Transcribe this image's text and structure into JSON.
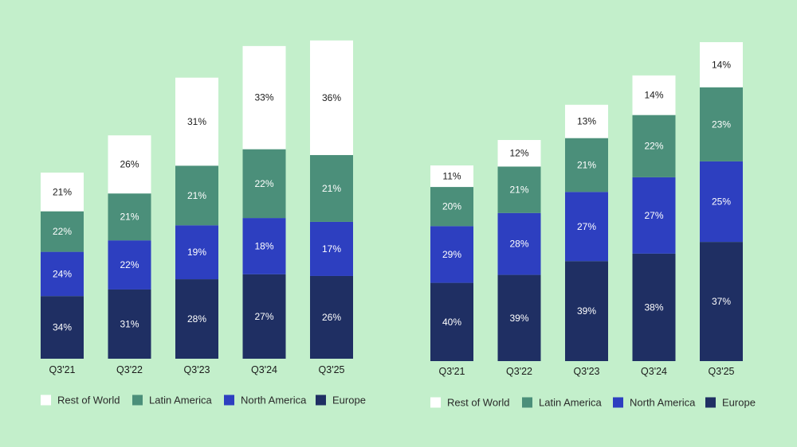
{
  "chart_data": [
    {
      "type": "bar",
      "stacked": true,
      "title": "",
      "xlabel": "",
      "ylabel": "",
      "categories": [
        "Q3'21",
        "Q3'22",
        "Q3'23",
        "Q3'24",
        "Q3'25"
      ],
      "total_index_estimated": [
        100,
        120,
        151,
        168,
        171
      ],
      "series": [
        {
          "name": "Europe",
          "color": "#1f2f63",
          "label_color": "#ffffff",
          "values": [
            34,
            31,
            28,
            27,
            26
          ]
        },
        {
          "name": "North America",
          "color": "#2d3fc0",
          "label_color": "#ffffff",
          "values": [
            24,
            22,
            19,
            18,
            17
          ]
        },
        {
          "name": "Latin America",
          "color": "#4b8f7a",
          "label_color": "#ffffff",
          "values": [
            22,
            21,
            21,
            22,
            21
          ]
        },
        {
          "name": "Rest of World",
          "color": "#ffffff",
          "label_color": "#1a1a1a",
          "values": [
            21,
            26,
            31,
            33,
            36
          ]
        }
      ],
      "value_suffix": "%",
      "legend": {
        "position": "bottom-left",
        "order": [
          "Rest of World",
          "Latin America",
          "North America",
          "Europe"
        ]
      },
      "grid": false
    },
    {
      "type": "bar",
      "stacked": true,
      "title": "",
      "xlabel": "",
      "ylabel": "",
      "categories": [
        "Q3'21",
        "Q3'22",
        "Q3'23",
        "Q3'24",
        "Q3'25"
      ],
      "total_index_estimated": [
        100,
        113,
        131,
        146,
        163
      ],
      "series": [
        {
          "name": "Europe",
          "color": "#1f2f63",
          "label_color": "#ffffff",
          "values": [
            40,
            39,
            39,
            38,
            37
          ]
        },
        {
          "name": "North America",
          "color": "#2d3fc0",
          "label_color": "#ffffff",
          "values": [
            29,
            28,
            27,
            27,
            25
          ]
        },
        {
          "name": "Latin America",
          "color": "#4b8f7a",
          "label_color": "#ffffff",
          "values": [
            20,
            21,
            21,
            22,
            23
          ]
        },
        {
          "name": "Rest of World",
          "color": "#ffffff",
          "label_color": "#1a1a1a",
          "values": [
            11,
            12,
            13,
            14,
            14
          ]
        }
      ],
      "value_suffix": "%",
      "legend": {
        "position": "bottom-left",
        "order": [
          "Rest of World",
          "Latin America",
          "North America",
          "Europe"
        ]
      },
      "grid": false
    }
  ]
}
